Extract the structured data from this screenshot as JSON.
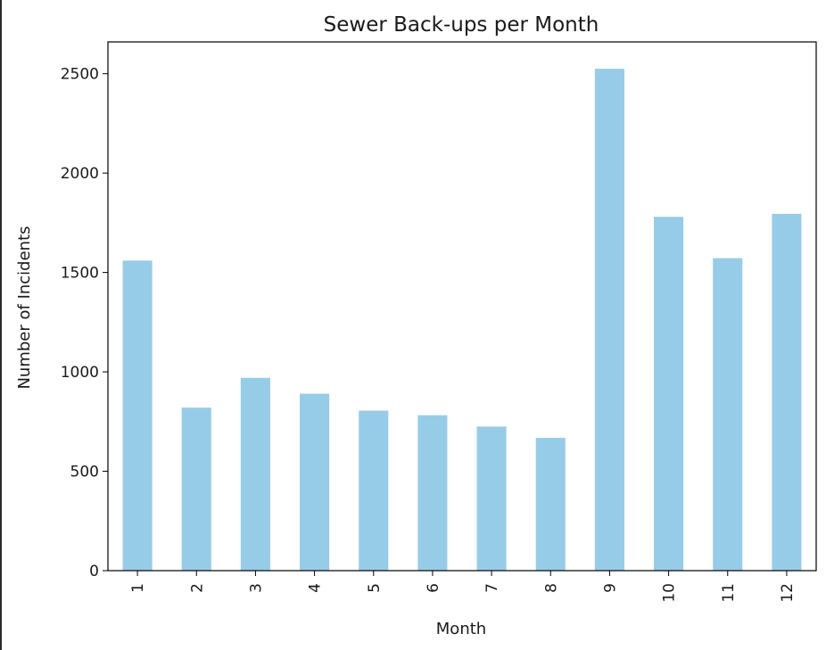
{
  "chart_data": {
    "type": "bar",
    "title": "Sewer Back-ups per Month",
    "xlabel": "Month",
    "ylabel": "Number of Incidents",
    "categories": [
      "1",
      "2",
      "3",
      "4",
      "5",
      "6",
      "7",
      "8",
      "9",
      "10",
      "11",
      "12"
    ],
    "values": [
      1560,
      820,
      970,
      890,
      805,
      782,
      725,
      668,
      2525,
      1780,
      1572,
      1795
    ],
    "ylim": [
      0,
      2660
    ],
    "yticks": [
      0,
      500,
      1000,
      1500,
      2000,
      2500
    ],
    "ytick_labels": [
      "0",
      "500",
      "1000",
      "1500",
      "2000",
      "2500"
    ],
    "grid": false,
    "colors": {
      "bar": "#97cce8",
      "axis": "#000000"
    }
  }
}
